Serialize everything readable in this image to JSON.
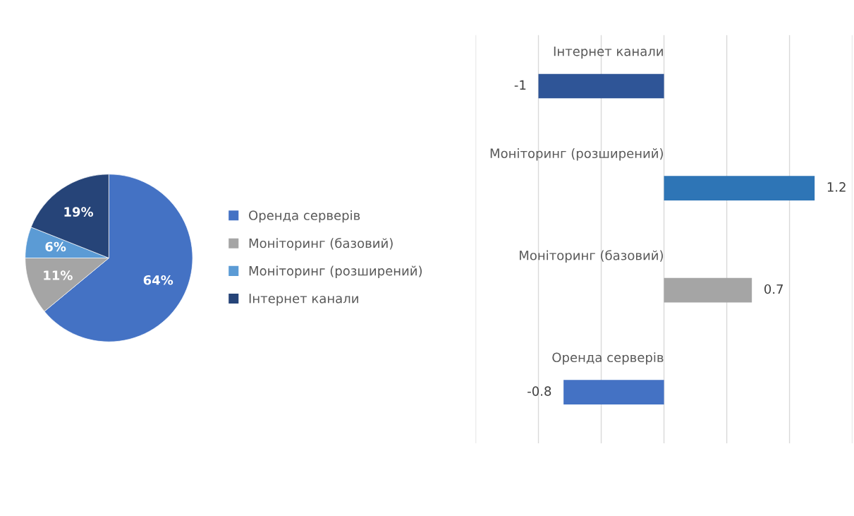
{
  "chart_data": [
    {
      "type": "pie",
      "categories": [
        "Оренда серверів",
        "Моніторинг (базовий)",
        "Моніторинг (розширений)",
        "Інтернет канали"
      ],
      "values": [
        64,
        11,
        6,
        19
      ],
      "colors": [
        "#4472c4",
        "#a5a5a5",
        "#5b9bd5",
        "#264478"
      ],
      "value_labels": [
        "64%",
        "11%",
        "6%",
        "19%"
      ],
      "legend": "right"
    },
    {
      "type": "bar",
      "orientation": "horizontal",
      "categories": [
        "Інтернет канали",
        "Моніторинг (розширений)",
        "Моніторинг (базовий)",
        "Оренда серверів"
      ],
      "values": [
        -1,
        1.2,
        0.7,
        -0.8
      ],
      "colors": [
        "#2f5597",
        "#2e75b6",
        "#a5a5a5",
        "#4472c4"
      ],
      "xlim": [
        -1.5,
        1.5
      ],
      "xticks": [
        {
          "value": -1.5,
          "label": null
        },
        {
          "value": -1,
          "label": null
        },
        {
          "value": -0.5,
          "label": null
        },
        {
          "value": 0,
          "label": null
        },
        {
          "value": 0.5,
          "label": null
        },
        {
          "value": 1,
          "label": null
        },
        {
          "value": 1.5,
          "label": null
        }
      ],
      "grid": "x",
      "data_labels": true
    }
  ]
}
